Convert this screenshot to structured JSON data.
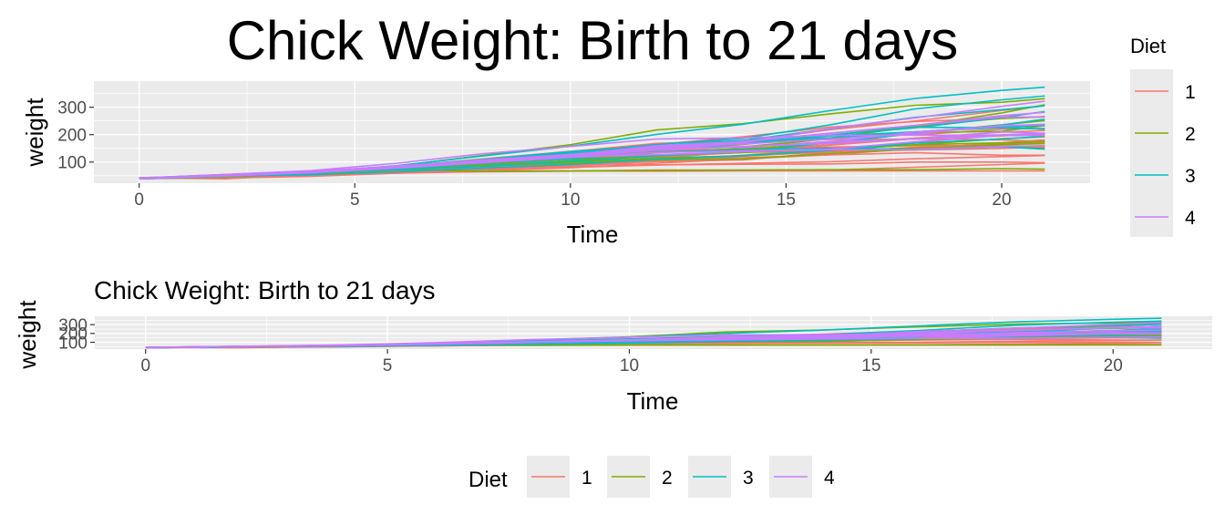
{
  "chart_data": [
    {
      "type": "line",
      "title": "Chick Weight: Birth to 21 days",
      "xlabel": "Time",
      "ylabel": "weight",
      "xlim": [
        -1.05,
        22.05
      ],
      "ylim": [
        23,
        395
      ],
      "x_ticks": [
        0,
        5,
        10,
        15,
        20
      ],
      "y_ticks": [
        100,
        200,
        300
      ],
      "grid": true,
      "legend": {
        "title": "Diet",
        "placement": "right",
        "entries": [
          {
            "label": "1",
            "color": "#F8766D"
          },
          {
            "label": "2",
            "color": "#7CAE00"
          },
          {
            "label": "3",
            "color": "#00BFC4"
          },
          {
            "label": "4",
            "color": "#C77CFF"
          }
        ]
      },
      "x": [
        0,
        2,
        4,
        6,
        8,
        10,
        12,
        14,
        16,
        18,
        20,
        21
      ],
      "series": [
        {
          "diet": "1",
          "color": "#F8766D",
          "values": [
            42,
            51,
            59,
            64,
            76,
            93,
            106,
            125,
            149,
            171,
            199,
            205
          ]
        },
        {
          "diet": "1",
          "color": "#F8766D",
          "values": [
            40,
            49,
            58,
            72,
            84,
            103,
            122,
            138,
            162,
            187,
            209,
            215
          ]
        },
        {
          "diet": "1",
          "color": "#F8766D",
          "values": [
            43,
            39,
            55,
            67,
            84,
            99,
            115,
            138,
            163,
            187,
            198,
            202
          ]
        },
        {
          "diet": "1",
          "color": "#F8766D",
          "values": [
            42,
            49,
            56,
            67,
            74,
            87,
            102,
            108,
            136,
            154,
            160,
            157
          ]
        },
        {
          "diet": "1",
          "color": "#F8766D",
          "values": [
            41,
            42,
            48,
            60,
            79,
            106,
            141,
            164,
            197,
            199,
            220,
            223
          ]
        },
        {
          "diet": "1",
          "color": "#F8766D",
          "values": [
            41,
            49,
            59,
            74,
            97,
            124,
            141,
            148,
            155,
            160,
            160,
            157
          ]
        },
        {
          "diet": "1",
          "color": "#F8766D",
          "values": [
            41,
            49,
            57,
            71,
            89,
            112,
            146,
            174,
            218,
            250,
            288,
            305
          ]
        },
        {
          "diet": "1",
          "color": "#F8766D",
          "values": [
            42,
            50,
            61,
            71,
            84,
            93,
            110,
            116,
            126,
            134,
            125,
            125
          ]
        },
        {
          "diet": "1",
          "color": "#F8766D",
          "values": [
            42,
            51,
            59,
            68,
            85,
            96,
            90,
            92,
            93,
            100,
            100,
            98
          ]
        },
        {
          "diet": "1",
          "color": "#F8766D",
          "values": [
            41,
            44,
            52,
            63,
            74,
            81,
            89,
            96,
            101,
            112,
            120,
            124
          ]
        },
        {
          "diet": "1",
          "color": "#F8766D",
          "values": [
            43,
            51,
            63,
            84,
            112,
            139,
            168,
            177,
            182,
            184,
            181,
            175
          ]
        },
        {
          "diet": "1",
          "color": "#F8766D",
          "values": [
            41,
            49,
            56,
            62,
            72,
            88,
            119,
            135,
            162,
            185,
            195,
            205
          ]
        },
        {
          "diet": "1",
          "color": "#F8766D",
          "values": [
            41,
            48,
            53,
            60,
            65,
            67,
            71,
            70,
            71,
            81,
            91,
            96
          ]
        },
        {
          "diet": "1",
          "color": "#F8766D",
          "values": [
            41,
            49,
            62,
            79,
            101,
            128,
            164,
            192,
            227,
            248,
            259,
            266
          ]
        },
        {
          "diet": "1",
          "color": "#F8766D",
          "values": [
            41,
            49,
            56,
            64,
            68,
            68,
            67,
            68,
            68,
            68,
            68,
            68
          ]
        },
        {
          "diet": "1",
          "color": "#F8766D",
          "values": [
            41,
            46,
            53,
            61,
            69,
            79,
            96,
            111,
            127,
            149,
            170,
            181
          ]
        },
        {
          "diet": "1",
          "color": "#F8766D",
          "values": [
            42,
            51,
            59,
            68,
            85,
            96,
            108,
            122,
            138,
            153,
            165,
            172
          ]
        },
        {
          "diet": "1",
          "color": "#F8766D",
          "values": [
            41,
            44,
            53,
            60,
            68,
            84,
            104,
            122,
            139,
            144,
            150,
            155
          ]
        },
        {
          "diet": "2",
          "color": "#7CAE00",
          "values": [
            40,
            50,
            62,
            86,
            125,
            163,
            217,
            240,
            275,
            307,
            318,
            331
          ]
        },
        {
          "diet": "2",
          "color": "#7CAE00",
          "values": [
            41,
            55,
            64,
            77,
            90,
            95,
            108,
            111,
            131,
            148,
            164,
            167
          ]
        },
        {
          "diet": "2",
          "color": "#7CAE00",
          "values": [
            43,
            52,
            61,
            73,
            90,
            103,
            127,
            135,
            145,
            163,
            170,
            175
          ]
        },
        {
          "diet": "2",
          "color": "#7CAE00",
          "values": [
            42,
            52,
            58,
            74,
            66,
            68,
            70,
            71,
            72,
            72,
            76,
            74
          ]
        },
        {
          "diet": "2",
          "color": "#7CAE00",
          "values": [
            40,
            49,
            62,
            78,
            102,
            124,
            146,
            164,
            197,
            231,
            259,
            265
          ]
        },
        {
          "diet": "2",
          "color": "#7CAE00",
          "values": [
            42,
            48,
            57,
            74,
            93,
            114,
            136,
            147,
            169,
            205,
            236,
            251
          ]
        },
        {
          "diet": "2",
          "color": "#7CAE00",
          "values": [
            39,
            46,
            58,
            73,
            87,
            100,
            115,
            123,
            144,
            163,
            185,
            192
          ]
        },
        {
          "diet": "2",
          "color": "#7CAE00",
          "values": [
            39,
            46,
            58,
            73,
            92,
            114,
            145,
            156,
            184,
            207,
            212,
            233
          ]
        },
        {
          "diet": "2",
          "color": "#7CAE00",
          "values": [
            39,
            48,
            59,
            74,
            87,
            106,
            134,
            150,
            187,
            230,
            279,
            309
          ]
        },
        {
          "diet": "2",
          "color": "#7CAE00",
          "values": [
            42,
            48,
            59,
            72,
            85,
            98,
            115,
            122,
            143,
            151,
            157,
            150
          ]
        },
        {
          "diet": "3",
          "color": "#00BFC4",
          "values": [
            42,
            53,
            62,
            73,
            85,
            102,
            123,
            138,
            170,
            204,
            235,
            256
          ]
        },
        {
          "diet": "3",
          "color": "#00BFC4",
          "values": [
            41,
            49,
            65,
            82,
            107,
            129,
            159,
            179,
            221,
            263,
            291,
            305
          ]
        },
        {
          "diet": "3",
          "color": "#00BFC4",
          "values": [
            39,
            50,
            63,
            77,
            96,
            111,
            137,
            144,
            151,
            146,
            156,
            147
          ]
        },
        {
          "diet": "3",
          "color": "#00BFC4",
          "values": [
            41,
            49,
            63,
            85,
            107,
            134,
            164,
            186,
            235,
            294,
            327,
            341
          ]
        },
        {
          "diet": "3",
          "color": "#00BFC4",
          "values": [
            41,
            53,
            64,
            87,
            123,
            158,
            201,
            238,
            287,
            332,
            361,
            373
          ]
        },
        {
          "diet": "3",
          "color": "#00BFC4",
          "values": [
            39,
            48,
            61,
            76,
            98,
            116,
            145,
            166,
            198,
            227,
            225,
            220
          ]
        },
        {
          "diet": "3",
          "color": "#00BFC4",
          "values": [
            39,
            49,
            61,
            77,
            96,
            120,
            144,
            167,
            195,
            210,
            226,
            233
          ]
        },
        {
          "diet": "3",
          "color": "#00BFC4",
          "values": [
            42,
            49,
            59,
            80,
            101,
            125,
            148,
            170,
            198,
            225,
            262,
            284
          ]
        },
        {
          "diet": "3",
          "color": "#00BFC4",
          "values": [
            39,
            51,
            66,
            85,
            110,
            138,
            160,
            174,
            188,
            210,
            230,
            234
          ]
        },
        {
          "diet": "3",
          "color": "#00BFC4",
          "values": [
            41,
            49,
            54,
            65,
            78,
            91,
            110,
            123,
            143,
            169,
            184,
            194
          ]
        },
        {
          "diet": "4",
          "color": "#C77CFF",
          "values": [
            42,
            51,
            66,
            85,
            103,
            124,
            155,
            153,
            175,
            184,
            199,
            204
          ]
        },
        {
          "diet": "4",
          "color": "#C77CFF",
          "values": [
            42,
            49,
            63,
            84,
            103,
            126,
            160,
            174,
            204,
            234,
            269,
            281
          ]
        },
        {
          "diet": "4",
          "color": "#C77CFF",
          "values": [
            42,
            55,
            69,
            96,
            131,
            157,
            184,
            188,
            197,
            198,
            199,
            200
          ]
        },
        {
          "diet": "4",
          "color": "#C77CFF",
          "values": [
            42,
            51,
            65,
            86,
            103,
            118,
            127,
            138,
            145,
            146,
            157,
            160
          ]
        },
        {
          "diet": "4",
          "color": "#C77CFF",
          "values": [
            41,
            50,
            61,
            78,
            98,
            117,
            135,
            141,
            147,
            174,
            197,
            196
          ]
        },
        {
          "diet": "4",
          "color": "#C77CFF",
          "values": [
            40,
            52,
            62,
            82,
            101,
            120,
            144,
            156,
            173,
            210,
            231,
            238
          ]
        },
        {
          "diet": "4",
          "color": "#C77CFF",
          "values": [
            41,
            53,
            66,
            79,
            100,
            123,
            148,
            157,
            168,
            185,
            210,
            205
          ]
        },
        {
          "diet": "4",
          "color": "#C77CFF",
          "values": [
            39,
            50,
            62,
            80,
            104,
            125,
            154,
            170,
            222,
            261,
            303,
            322
          ]
        },
        {
          "diet": "4",
          "color": "#C77CFF",
          "values": [
            40,
            53,
            64,
            85,
            108,
            128,
            152,
            166,
            184,
            203,
            233,
            237
          ]
        },
        {
          "diet": "4",
          "color": "#C77CFF",
          "values": [
            41,
            54,
            67,
            84,
            105,
            122,
            155,
            175,
            205,
            234,
            264,
            264
          ]
        }
      ]
    },
    {
      "type": "line",
      "title": "Chick Weight: Birth to 21 days",
      "xlabel": "Time",
      "ylabel": "weight",
      "xlim": [
        -1.05,
        22.05
      ],
      "ylim": [
        23,
        395
      ],
      "x_ticks": [
        0,
        5,
        10,
        15,
        20
      ],
      "y_ticks": [
        100,
        200,
        300
      ],
      "grid": true,
      "legend": {
        "title": "Diet",
        "placement": "bottom",
        "entries": [
          {
            "label": "1",
            "color": "#F8766D"
          },
          {
            "label": "2",
            "color": "#7CAE00"
          },
          {
            "label": "3",
            "color": "#00BFC4"
          },
          {
            "label": "4",
            "color": "#C77CFF"
          }
        ]
      },
      "series_source": "same as chart 1"
    }
  ]
}
